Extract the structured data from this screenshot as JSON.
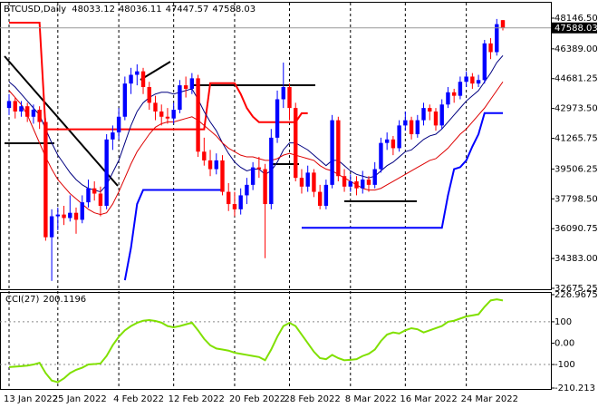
{
  "chart_data": [
    {
      "type": "candlestick",
      "title": "BTCUSD,Daily",
      "categories": [
        "13 Jan 2022",
        null,
        null,
        null,
        null,
        null,
        null,
        null,
        "25 Jan 2022",
        null,
        null,
        null,
        null,
        null,
        null,
        null,
        null,
        null,
        "4 Feb 2022",
        null,
        null,
        null,
        null,
        null,
        null,
        null,
        null,
        "12 Feb 2022",
        null,
        null,
        null,
        null,
        null,
        null,
        null,
        null,
        null,
        "20 Feb 2022",
        null,
        null,
        null,
        null,
        null,
        null,
        null,
        null,
        "28 Feb 2022",
        null,
        null,
        null,
        null,
        null,
        null,
        null,
        null,
        null,
        "8 Mar 2022",
        null,
        null,
        null,
        null,
        null,
        null,
        null,
        null,
        "16 Mar 2022",
        null,
        null,
        null,
        null,
        null,
        null,
        null,
        null,
        null,
        "24 Mar 2022",
        null,
        null,
        null,
        null,
        null,
        null
      ],
      "open": [
        43000,
        43400,
        42800,
        43100,
        42500,
        42900,
        42200,
        35600,
        36800,
        36900,
        36700,
        37000,
        36600,
        37600,
        38400,
        38100,
        37400,
        41200,
        41600,
        42500,
        44400,
        44900,
        45100,
        44200,
        43300,
        42800,
        42500,
        42400,
        42900,
        44300,
        44100,
        44700,
        40500,
        40000,
        39500,
        40000,
        38200,
        37500,
        37200,
        38000,
        38600,
        39600,
        39500,
        37500,
        41300,
        43500,
        44200,
        43000,
        39000,
        38500,
        39300,
        38200,
        37400,
        38600,
        42300,
        39100,
        38500,
        38800,
        38400,
        38900,
        38600,
        39500,
        41000,
        41200,
        40700,
        42000,
        42300,
        41500,
        42300,
        43000,
        42800,
        42000,
        43200,
        43900,
        43700,
        44500,
        44800,
        44400,
        44600,
        46700,
        46200,
        48033.12
      ],
      "high": [
        43800,
        43600,
        43400,
        43300,
        43200,
        43100,
        42400,
        37200,
        37300,
        37400,
        38000,
        37300,
        38000,
        38900,
        38800,
        38500,
        41500,
        42000,
        43000,
        44800,
        45300,
        45500,
        45300,
        44500,
        43700,
        43200,
        43000,
        43300,
        44600,
        44800,
        45000,
        44900,
        41300,
        40600,
        40400,
        40300,
        38700,
        38200,
        38400,
        39000,
        39900,
        40200,
        39800,
        41800,
        44000,
        45600,
        44400,
        43300,
        39500,
        39700,
        39500,
        38600,
        38900,
        42600,
        42500,
        39500,
        39200,
        39100,
        39400,
        39100,
        39900,
        41300,
        41600,
        41400,
        42300,
        42800,
        42500,
        42600,
        43300,
        43200,
        43000,
        43500,
        44200,
        44100,
        44800,
        45100,
        45000,
        44900,
        46900,
        47000,
        48100,
        48036.11
      ],
      "low": [
        42600,
        42400,
        42500,
        42200,
        42100,
        41800,
        35400,
        33100,
        36000,
        36300,
        36500,
        35800,
        36400,
        37300,
        37700,
        36800,
        37200,
        40600,
        41200,
        42300,
        43800,
        44300,
        43800,
        42900,
        42300,
        42000,
        42100,
        42100,
        42700,
        43600,
        43800,
        40200,
        39700,
        39100,
        39200,
        38000,
        37100,
        36800,
        36900,
        37500,
        38300,
        39000,
        34400,
        37200,
        41000,
        43000,
        42300,
        38800,
        38100,
        38200,
        37900,
        37200,
        37200,
        38400,
        38800,
        38200,
        38200,
        38000,
        38100,
        38200,
        38400,
        39300,
        40600,
        40300,
        40500,
        41700,
        41200,
        41300,
        42000,
        42300,
        41700,
        41800,
        43000,
        43300,
        43500,
        44200,
        44100,
        44200,
        44400,
        45800,
        46000,
        47447.57
      ],
      "close": [
        43400,
        42800,
        43100,
        42500,
        42900,
        42200,
        35600,
        36800,
        36900,
        36700,
        37000,
        36600,
        37600,
        38400,
        38100,
        37400,
        41200,
        41600,
        42500,
        44400,
        44900,
        45100,
        44200,
        43300,
        42800,
        42500,
        42400,
        42900,
        44300,
        44100,
        44700,
        40500,
        40000,
        39500,
        40000,
        38200,
        37500,
        37200,
        38000,
        38600,
        39600,
        39500,
        37500,
        41300,
        43500,
        44200,
        43000,
        39000,
        38500,
        39300,
        38200,
        37400,
        38600,
        42300,
        39100,
        38500,
        38800,
        38400,
        38900,
        38600,
        39500,
        41000,
        41200,
        40700,
        42000,
        42300,
        41500,
        42300,
        43000,
        42800,
        42000,
        43200,
        43900,
        43700,
        44500,
        44800,
        44400,
        44600,
        46700,
        46200,
        47800,
        47588.03
      ],
      "up_color": "#0000ff",
      "down_color": "#ff0000",
      "series": [
        {
          "color": "#ff0000",
          "values": [
            47890,
            47890,
            47890,
            47890,
            47890,
            47890,
            41780,
            41780,
            41780,
            41780,
            41780,
            41780,
            41780,
            41780,
            41780,
            41780,
            41780,
            41780,
            41780,
            41780,
            41780,
            41780,
            41780,
            41780,
            41780,
            41780,
            41780,
            41780,
            41780,
            41780,
            41780,
            41780,
            41780,
            44420,
            44420,
            44420,
            44420,
            44420,
            43800,
            43000,
            42500,
            42190,
            42190,
            42190,
            42190,
            42190,
            42190,
            42190,
            42700,
            42700,
            null,
            null,
            null,
            null,
            null,
            null,
            null,
            null,
            null,
            null,
            null,
            null,
            null,
            null,
            null,
            null,
            null,
            null,
            null,
            null,
            null,
            null,
            null,
            null,
            null,
            null,
            null,
            null,
            null,
            null,
            null,
            null
          ]
        },
        {
          "color": "#0000ff",
          "values": [
            null,
            null,
            null,
            null,
            null,
            null,
            null,
            null,
            null,
            null,
            null,
            null,
            null,
            null,
            null,
            null,
            null,
            null,
            null,
            33140,
            35000,
            37500,
            38310,
            38310,
            38310,
            38310,
            38310,
            38310,
            38310,
            38310,
            38310,
            38310,
            38310,
            38310,
            38310,
            38310,
            null,
            null,
            null,
            null,
            null,
            null,
            null,
            null,
            null,
            null,
            null,
            null,
            36140,
            36140,
            36140,
            36140,
            36140,
            36140,
            36140,
            36140,
            36140,
            36140,
            36140,
            36140,
            36140,
            36140,
            36140,
            36140,
            36140,
            36140,
            36140,
            36140,
            36140,
            36140,
            36140,
            36140,
            38000,
            39500,
            39610,
            40000,
            40800,
            41500,
            42710,
            42710,
            42710,
            42710
          ]
        },
        {
          "color": "#000080",
          "values": [
            44500,
            44200,
            43800,
            43400,
            43000,
            42600,
            41800,
            41000,
            40300,
            39800,
            39300,
            38900,
            38600,
            38400,
            38300,
            38200,
            38600,
            39300,
            40000,
            41000,
            42000,
            42800,
            43300,
            43600,
            43800,
            43900,
            43900,
            43800,
            43900,
            44000,
            44100,
            43500,
            42800,
            42200,
            41700,
            41000,
            40400,
            39900,
            39600,
            39400,
            39500,
            39500,
            39200,
            39400,
            39900,
            40600,
            41000,
            41000,
            40800,
            40600,
            40300,
            40000,
            39700,
            40000,
            40000,
            39700,
            39400,
            39200,
            39100,
            39000,
            39100,
            39400,
            39700,
            39900,
            40200,
            40500,
            40600,
            40900,
            41200,
            41400,
            41500,
            41800,
            42200,
            42600,
            43000,
            43400,
            43700,
            44000,
            44500,
            45000,
            45600,
            46000
          ]
        },
        {
          "color": "#dd0000",
          "values": [
            44000,
            43600,
            43200,
            42600,
            41800,
            41000,
            40200,
            39500,
            38900,
            38500,
            38100,
            37800,
            37500,
            37200,
            37000,
            36900,
            37000,
            37500,
            38200,
            39000,
            39800,
            40500,
            41000,
            41500,
            41900,
            42100,
            42200,
            42200,
            42300,
            42400,
            42500,
            42300,
            42000,
            41700,
            41400,
            41000,
            40700,
            40500,
            40300,
            40200,
            40200,
            40100,
            40000,
            40000,
            40100,
            40300,
            40400,
            40300,
            40200,
            40100,
            40000,
            39700,
            39500,
            39400,
            39200,
            39000,
            38800,
            38600,
            38400,
            38300,
            38300,
            38400,
            38600,
            38800,
            39000,
            39200,
            39400,
            39600,
            39800,
            40000,
            40100,
            40400,
            40700,
            41100,
            41500,
            41800,
            42200,
            42600,
            43000,
            43500,
            44000,
            44500
          ]
        }
      ],
      "ylim": [
        32571,
        49029
      ],
      "yticks": [
        {
          "value": 48146.5,
          "label": "48146.50"
        },
        {
          "value": 46389,
          "label": "46389.00"
        },
        44681.25,
        {
          "value": 42973.5,
          "label": "42973.50"
        },
        41265.75,
        39506.25,
        {
          "value": 37798.5,
          "label": "37798.50"
        },
        36090.75,
        {
          "value": 34383,
          "label": "34383.00"
        },
        32675.25
      ]
    },
    {
      "type": "line",
      "series": [
        {
          "name": "CCI(27)",
          "color": "#80e000",
          "values": [
            -112,
            -110,
            -108,
            -105,
            -100,
            -92,
            -140,
            -175,
            -183,
            -165,
            -140,
            -125,
            -115,
            -100,
            -98,
            -95,
            -60,
            -10,
            30,
            60,
            80,
            95,
            105,
            108,
            104,
            96,
            80,
            74,
            80,
            88,
            96,
            60,
            20,
            -10,
            -25,
            -30,
            -35,
            -45,
            -50,
            -55,
            -60,
            -65,
            -80,
            -30,
            30,
            80,
            95,
            80,
            40,
            0,
            -40,
            -70,
            -75,
            -55,
            -70,
            -80,
            -78,
            -75,
            -60,
            -50,
            -30,
            10,
            40,
            50,
            45,
            60,
            70,
            65,
            50,
            60,
            70,
            80,
            100,
            105,
            115,
            125,
            130,
            135,
            170,
            200,
            205,
            200.1196
          ]
        }
      ],
      "ylim": [
        -210.213,
        226.9675
      ],
      "yticks": [
        226.9675,
        100,
        {
          "value": 0,
          "label": "0.00"
        },
        -100,
        -210.213
      ]
    }
  ]
}
